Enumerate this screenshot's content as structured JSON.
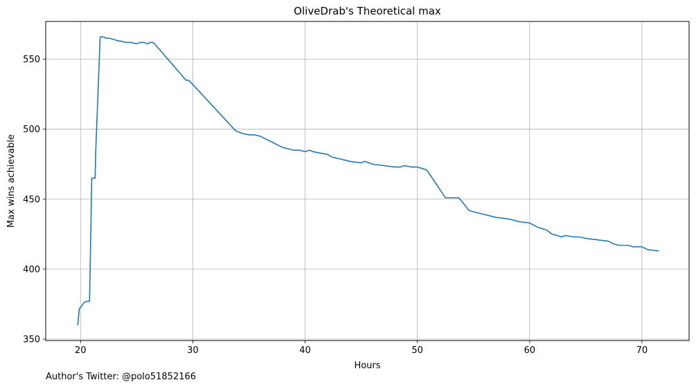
{
  "footer": {
    "author_note": "Author's Twitter: @polo51852166"
  },
  "chart_data": {
    "type": "line",
    "title": "OliveDrab's Theoretical max",
    "xlabel": "Hours",
    "ylabel": "Max wins achievable",
    "xlim": [
      16.9,
      74.2
    ],
    "ylim": [
      349,
      577
    ],
    "xticks": [
      20,
      30,
      40,
      50,
      60,
      70
    ],
    "yticks": [
      350,
      400,
      450,
      500,
      550
    ],
    "grid": true,
    "line_color": "#1f77b4",
    "series": [
      {
        "x": [
          19.75,
          19.9,
          20.05,
          20.3,
          20.5,
          20.6,
          20.8,
          20.85,
          21.0,
          21.05,
          21.3,
          21.35,
          21.75,
          22.0,
          22.3,
          22.6,
          23.0,
          23.4,
          23.6,
          24.0,
          24.5,
          25.0,
          25.3,
          25.6,
          26.0,
          26.2,
          26.45,
          26.6,
          29.4,
          29.65,
          33.8,
          34.1,
          34.4,
          35.0,
          35.5,
          36.0,
          36.5,
          37.0,
          37.5,
          38.0,
          38.5,
          39.0,
          39.5,
          40.0,
          40.4,
          40.7,
          41.3,
          42.0,
          42.4,
          43.0,
          43.5,
          44.0,
          45.0,
          45.3,
          45.7,
          46.0,
          47.0,
          48.0,
          48.5,
          48.8,
          49.5,
          50.0,
          50.4,
          50.8,
          51.0,
          51.5,
          52.0,
          52.5,
          53.0,
          53.3,
          53.7,
          54.0,
          54.3,
          54.6,
          55.0,
          55.5,
          56.0,
          56.5,
          57.0,
          58.0,
          58.6,
          59.0,
          60.0,
          60.7,
          61.5,
          62.0,
          62.5,
          62.8,
          63.2,
          64.0,
          64.4,
          65.0,
          66.0,
          67.0,
          67.5,
          68.0,
          68.8,
          69.2,
          69.8,
          70.0,
          70.5,
          71.5
        ],
        "y": [
          360,
          372,
          373,
          376,
          377,
          377,
          377,
          396,
          465,
          465,
          465,
          483,
          566,
          566,
          565,
          565,
          564,
          563,
          563,
          562,
          562,
          561,
          562,
          562,
          561,
          562,
          562,
          561,
          535,
          535,
          499,
          498,
          497,
          496,
          496,
          495,
          493,
          491,
          489,
          487,
          486,
          485,
          485,
          484,
          485,
          484,
          483,
          482,
          480,
          479,
          478,
          477,
          476,
          477,
          476,
          475,
          474,
          473,
          473,
          474,
          473,
          473,
          472,
          471,
          469,
          463,
          457,
          451,
          451,
          451,
          451,
          448,
          445,
          442,
          441,
          440,
          439,
          438,
          437,
          436,
          435,
          434,
          433,
          430,
          428,
          425,
          424,
          423,
          424,
          423,
          423,
          422,
          421,
          420,
          418,
          417,
          417,
          416,
          416,
          416,
          414,
          413
        ]
      }
    ]
  }
}
